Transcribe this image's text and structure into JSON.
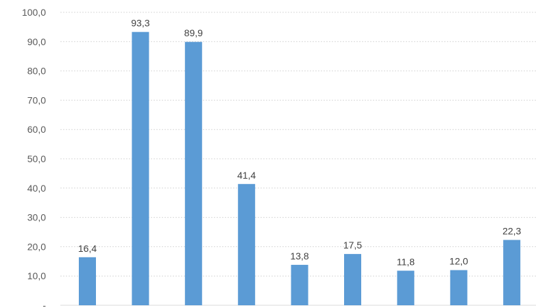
{
  "chart_data": {
    "type": "bar",
    "categories": [
      "",
      "",
      "",
      "",
      "",
      "",
      "",
      "",
      ""
    ],
    "values": [
      16.4,
      93.3,
      89.9,
      41.4,
      13.8,
      17.5,
      11.8,
      12.0,
      22.3
    ],
    "value_labels": [
      "16,4",
      "93,3",
      "89,9",
      "41,4",
      "13,8",
      "17,5",
      "11,8",
      "12,0",
      "22,3"
    ],
    "y_ticks": [
      0,
      10,
      20,
      30,
      40,
      50,
      60,
      70,
      80,
      90,
      100
    ],
    "y_tick_labels": [
      "-",
      "10,0",
      "20,0",
      "30,0",
      "40,0",
      "50,0",
      "60,0",
      "70,0",
      "80,0",
      "90,0",
      "100,0"
    ],
    "ylim": [
      0,
      100
    ],
    "grid": true,
    "legend": "none",
    "bar_color": "#5b9bd5"
  }
}
